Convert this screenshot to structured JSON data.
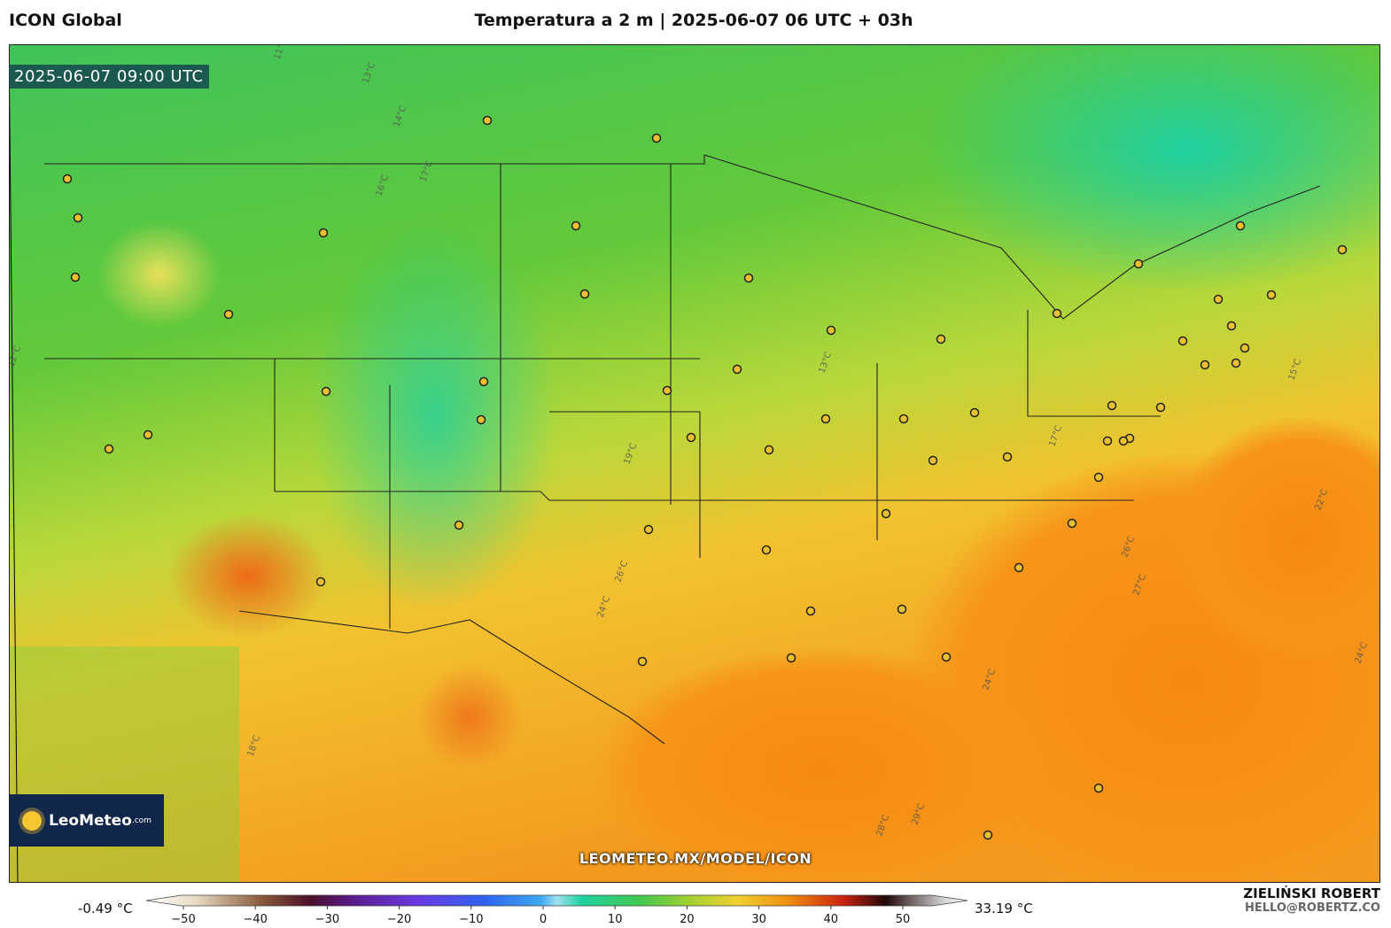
{
  "header": {
    "model": "ICON Global",
    "title": "Temperatura a 2 m | 2025-06-07 06 UTC + 03h"
  },
  "map": {
    "valid_time": "2025-06-07 09:00 UTC",
    "logo": "LeoMeteo",
    "logo_domain": ".com",
    "watermark": "LEOMETEO.MX/MODEL/ICON",
    "contour_labels": [
      "11°C",
      "13°C",
      "17°C",
      "14°C",
      "16°C",
      "12°C",
      "13°C",
      "19°C",
      "26°C",
      "24°C",
      "17°C",
      "22°C",
      "26°C",
      "27°C",
      "24°C",
      "28°C",
      "29°C",
      "18°C",
      "15°C",
      "24°C"
    ]
  },
  "colorbar": {
    "min_label": "-0.49 °C",
    "max_label": "33.19 °C",
    "ticks": [
      {
        "value": -50,
        "label": "−50"
      },
      {
        "value": -40,
        "label": "−40"
      },
      {
        "value": -30,
        "label": "−30"
      },
      {
        "value": -20,
        "label": "−20"
      },
      {
        "value": -10,
        "label": "−10"
      },
      0,
      10,
      20,
      30,
      40,
      50
    ]
  },
  "credit": {
    "name": "ZIELIŃSKI ROBERT",
    "email": "HELLO@ROBERTZ.CO"
  }
}
